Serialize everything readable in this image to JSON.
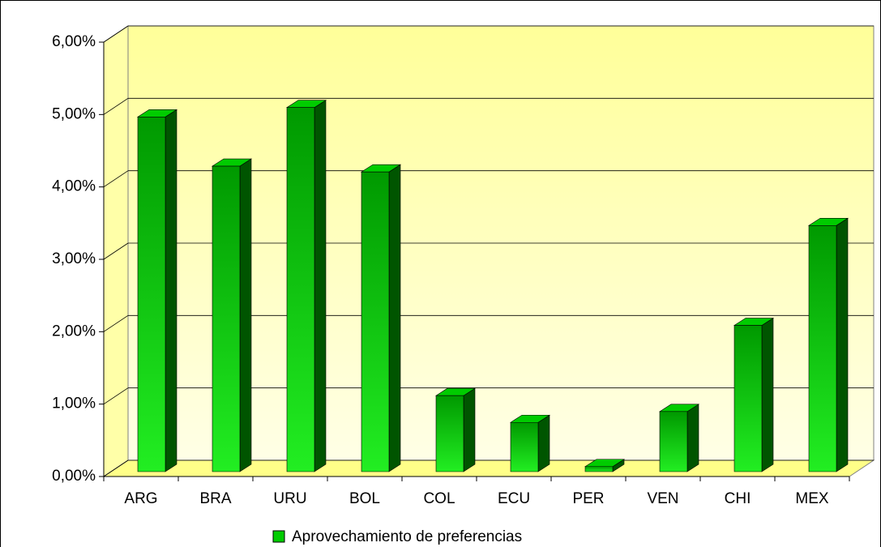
{
  "chart_data": {
    "type": "bar3d",
    "categories": [
      "ARG",
      "BRA",
      "URU",
      "BOL",
      "COL",
      "ECU",
      "PER",
      "VEN",
      "CHI",
      "MEX"
    ],
    "series": [
      {
        "name": "Aprovechamiento de preferencias",
        "color": "#00cc00",
        "values": [
          4.9,
          4.22,
          5.03,
          4.14,
          1.05,
          0.68,
          0.07,
          0.83,
          2.02,
          3.4
        ]
      }
    ],
    "ylim": [
      0,
      6
    ],
    "yticks": [
      {
        "value": 0,
        "label": "0,00%"
      },
      {
        "value": 1,
        "label": "1,00%"
      },
      {
        "value": 2,
        "label": "2,00%"
      },
      {
        "value": 3,
        "label": "3,00%"
      },
      {
        "value": 4,
        "label": "4,00%"
      },
      {
        "value": 5,
        "label": "5,00%"
      },
      {
        "value": 6,
        "label": "6,00%"
      }
    ],
    "grid": true,
    "legend": "bottom"
  }
}
